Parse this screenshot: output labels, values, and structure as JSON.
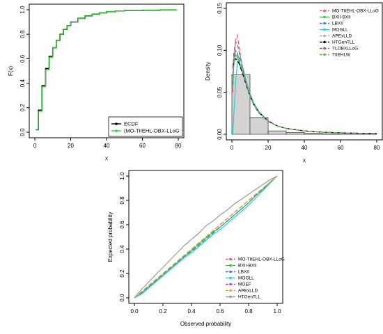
{
  "chart_data": [
    {
      "type": "line",
      "panel": "ecdf",
      "xlabel": "x",
      "ylabel": "F(x)",
      "xlim": [
        0,
        80
      ],
      "ylim": [
        0,
        1
      ],
      "x_ticks": [
        "0",
        "20",
        "40",
        "60",
        "80"
      ],
      "y_ticks": [
        "0.0",
        "0.2",
        "0.4",
        "0.6",
        "0.8",
        "1.0"
      ],
      "legend_position": "bottom-right",
      "series": [
        {
          "name": "ECDF",
          "color": "#000000",
          "x": [
            0.5,
            2,
            4,
            6,
            8,
            10,
            12,
            14,
            16,
            18,
            20,
            24,
            28,
            32,
            36,
            40,
            45,
            50,
            60,
            70,
            79
          ],
          "y": [
            0.02,
            0.18,
            0.38,
            0.52,
            0.62,
            0.69,
            0.75,
            0.8,
            0.84,
            0.87,
            0.9,
            0.93,
            0.95,
            0.965,
            0.975,
            0.985,
            0.99,
            0.993,
            0.996,
            0.998,
            1.0
          ]
        },
        {
          "name": "(MO-TIIEHL-OBX-LLoG",
          "color": "#33cc33",
          "x": [
            0.5,
            2,
            4,
            6,
            8,
            10,
            12,
            14,
            16,
            18,
            20,
            24,
            28,
            32,
            36,
            40,
            45,
            50,
            60,
            70,
            79
          ],
          "y": [
            0.02,
            0.17,
            0.37,
            0.51,
            0.61,
            0.69,
            0.75,
            0.8,
            0.84,
            0.87,
            0.9,
            0.93,
            0.95,
            0.965,
            0.975,
            0.985,
            0.99,
            0.993,
            0.996,
            0.998,
            1.0
          ]
        }
      ]
    },
    {
      "type": "bar",
      "panel": "density",
      "xlabel": "x",
      "ylabel": "Density",
      "xlim": [
        0,
        80
      ],
      "ylim": [
        0,
        0.15
      ],
      "x_ticks": [
        "0",
        "20",
        "40",
        "60",
        "80"
      ],
      "y_ticks": [
        "0.00",
        "0.05",
        "0.10",
        "0.15"
      ],
      "legend_position": "top-right",
      "histogram": {
        "bin_edges": [
          0,
          10,
          20,
          30,
          40,
          50,
          60,
          70,
          80
        ],
        "values": [
          0.071,
          0.02,
          0.004,
          0.002,
          0.001,
          0.0005,
          0.0003,
          0.0001
        ]
      },
      "curve_x": [
        0.5,
        1,
        2,
        3,
        4,
        5,
        6,
        8,
        10,
        12,
        15,
        20,
        25,
        30,
        40,
        50,
        60,
        70,
        80
      ],
      "series": [
        {
          "name": "MO-TIIEHL-OBX-LLoG",
          "color": "#e8557a",
          "dash": "6,3",
          "y": [
            0.05,
            0.08,
            0.112,
            0.118,
            0.105,
            0.09,
            0.078,
            0.058,
            0.045,
            0.035,
            0.025,
            0.015,
            0.01,
            0.007,
            0.004,
            0.0025,
            0.0017,
            0.0012,
            0.0009
          ]
        },
        {
          "name": "BXII-BXII",
          "color": "#33cc33",
          "dash": "",
          "y": [
            0.06,
            0.085,
            0.095,
            0.092,
            0.086,
            0.08,
            0.072,
            0.058,
            0.046,
            0.036,
            0.026,
            0.016,
            0.01,
            0.007,
            0.004,
            0.0025,
            0.0017,
            0.0012,
            0.0009
          ]
        },
        {
          "name": "LBXII",
          "color": "#3a7fd5",
          "dash": "6,3",
          "y": [
            0.06,
            0.09,
            0.1,
            0.095,
            0.088,
            0.08,
            0.072,
            0.058,
            0.046,
            0.036,
            0.026,
            0.016,
            0.01,
            0.007,
            0.004,
            0.0025,
            0.0017,
            0.0012,
            0.0009
          ]
        },
        {
          "name": "MOGLL",
          "color": "#22d3d3",
          "dash": "",
          "y": [
            0.0,
            0.02,
            0.06,
            0.085,
            0.092,
            0.088,
            0.08,
            0.063,
            0.049,
            0.038,
            0.027,
            0.016,
            0.01,
            0.007,
            0.004,
            0.0025,
            0.0017,
            0.0012,
            0.0009
          ]
        },
        {
          "name": "APExLLD",
          "color": "#b0b0b0",
          "dash": "6,3",
          "y": [
            0.075,
            0.09,
            0.093,
            0.09,
            0.084,
            0.078,
            0.071,
            0.058,
            0.046,
            0.036,
            0.026,
            0.016,
            0.01,
            0.007,
            0.004,
            0.0025,
            0.0017,
            0.0012,
            0.0009
          ]
        },
        {
          "name": "HTGenTLL",
          "color": "#000000",
          "dash": "6,3",
          "y": [
            0.08,
            0.086,
            0.09,
            0.088,
            0.084,
            0.078,
            0.072,
            0.058,
            0.046,
            0.036,
            0.026,
            0.016,
            0.01,
            0.007,
            0.004,
            0.0025,
            0.0017,
            0.0012,
            0.0009
          ]
        },
        {
          "name": "TLOBXLLoG",
          "color": "#a0527a",
          "dash": "6,3",
          "y": [
            0.07,
            0.095,
            0.11,
            0.108,
            0.098,
            0.088,
            0.078,
            0.06,
            0.047,
            0.036,
            0.026,
            0.016,
            0.01,
            0.007,
            0.004,
            0.0025,
            0.0017,
            0.0012,
            0.0009
          ]
        },
        {
          "name": "TIIEHLW",
          "color": "#6fae4f",
          "dash": "6,3",
          "y": [
            0.055,
            0.08,
            0.098,
            0.097,
            0.09,
            0.082,
            0.074,
            0.059,
            0.046,
            0.036,
            0.026,
            0.016,
            0.01,
            0.007,
            0.004,
            0.0025,
            0.0017,
            0.0012,
            0.0009
          ]
        }
      ]
    },
    {
      "type": "line",
      "panel": "pp",
      "xlabel": "Observed probability",
      "ylabel": "Expected probability",
      "xlim": [
        0,
        1
      ],
      "ylim": [
        0,
        1
      ],
      "x_ticks": [
        "0.0",
        "0.2",
        "0.4",
        "0.6",
        "0.8",
        "1.0"
      ],
      "y_ticks": [
        "0.0",
        "0.2",
        "0.4",
        "0.6",
        "0.8",
        "1.0"
      ],
      "legend_position": "bottom-right",
      "x": [
        0.0,
        0.05,
        0.1,
        0.15,
        0.2,
        0.25,
        0.3,
        0.35,
        0.4,
        0.45,
        0.5,
        0.55,
        0.6,
        0.65,
        0.7,
        0.75,
        0.8,
        0.85,
        0.9,
        0.95,
        1.0
      ],
      "series": [
        {
          "name": "MO-TIIEHL-OBX-LLoG",
          "color": "#e8557a",
          "dash": "6,3",
          "y": [
            0.0,
            0.05,
            0.1,
            0.15,
            0.2,
            0.25,
            0.3,
            0.35,
            0.4,
            0.45,
            0.5,
            0.55,
            0.6,
            0.65,
            0.7,
            0.75,
            0.8,
            0.85,
            0.9,
            0.95,
            1.0
          ]
        },
        {
          "name": "BXII-BXII",
          "color": "#33cc33",
          "dash": "",
          "y": [
            0.0,
            0.04,
            0.09,
            0.14,
            0.19,
            0.24,
            0.29,
            0.34,
            0.39,
            0.44,
            0.49,
            0.54,
            0.58,
            0.63,
            0.68,
            0.73,
            0.78,
            0.84,
            0.89,
            0.95,
            1.0
          ]
        },
        {
          "name": "LBXII",
          "color": "#3a7fd5",
          "dash": "6,3",
          "y": [
            0.0,
            0.04,
            0.09,
            0.14,
            0.19,
            0.24,
            0.29,
            0.34,
            0.38,
            0.43,
            0.48,
            0.53,
            0.58,
            0.63,
            0.68,
            0.73,
            0.78,
            0.84,
            0.89,
            0.95,
            1.0
          ]
        },
        {
          "name": "MOGLL",
          "color": "#22d3d3",
          "dash": "",
          "y": [
            0.0,
            0.03,
            0.08,
            0.13,
            0.18,
            0.23,
            0.28,
            0.33,
            0.37,
            0.42,
            0.47,
            0.52,
            0.56,
            0.61,
            0.66,
            0.71,
            0.76,
            0.82,
            0.88,
            0.94,
            1.0
          ]
        },
        {
          "name": "MOEF",
          "color": "#cc33cc",
          "dash": "6,3",
          "y": [
            0.0,
            0.05,
            0.1,
            0.15,
            0.2,
            0.25,
            0.3,
            0.35,
            0.4,
            0.45,
            0.5,
            0.55,
            0.6,
            0.65,
            0.7,
            0.75,
            0.8,
            0.85,
            0.9,
            0.95,
            1.0
          ]
        },
        {
          "name": "APExLLD",
          "color": "#e6a817",
          "dash": "6,3",
          "y": [
            0.0,
            0.05,
            0.1,
            0.15,
            0.2,
            0.25,
            0.3,
            0.35,
            0.4,
            0.45,
            0.5,
            0.55,
            0.6,
            0.65,
            0.7,
            0.75,
            0.8,
            0.85,
            0.9,
            0.95,
            1.0
          ]
        },
        {
          "name": "HTGenTLL",
          "color": "#9a9a9a",
          "dash": "",
          "y": [
            0.0,
            0.07,
            0.13,
            0.19,
            0.25,
            0.31,
            0.37,
            0.43,
            0.48,
            0.53,
            0.59,
            0.63,
            0.68,
            0.72,
            0.77,
            0.81,
            0.85,
            0.89,
            0.93,
            0.97,
            1.0
          ]
        }
      ]
    }
  ]
}
